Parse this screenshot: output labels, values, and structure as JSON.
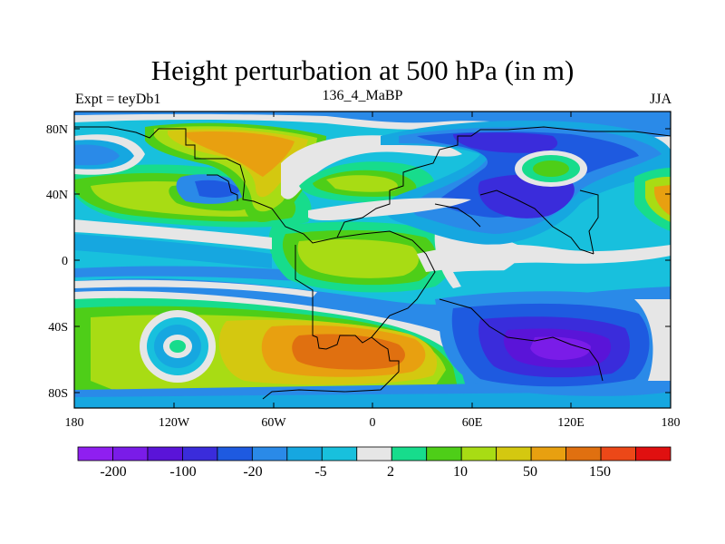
{
  "title": "Height perturbation at 500 hPa (in m)",
  "left_subtitle": "Expt = teyDb1",
  "center_subtitle": "136_4_MaBP",
  "right_subtitle": "JJA",
  "lat_labels": [
    "80N",
    "40N",
    "0",
    "40S",
    "80S"
  ],
  "lon_labels": [
    "180",
    "120W",
    "60W",
    "0",
    "60E",
    "120E",
    "180"
  ],
  "colorbar": {
    "colors": [
      "#8f1ff0",
      "#7a1ce8",
      "#5a14d8",
      "#3a2cdb",
      "#1e5ae0",
      "#2a8ae8",
      "#16a7e0",
      "#18c0dd",
      "#e6e6e6",
      "#17dc8c",
      "#4ece18",
      "#a8dc14",
      "#d4c810",
      "#e8a010",
      "#e07010",
      "#ec4818",
      "#e01010"
    ],
    "labels": [
      "-200",
      "-100",
      "-20",
      "-5",
      "2",
      "10",
      "50",
      "150"
    ]
  }
}
